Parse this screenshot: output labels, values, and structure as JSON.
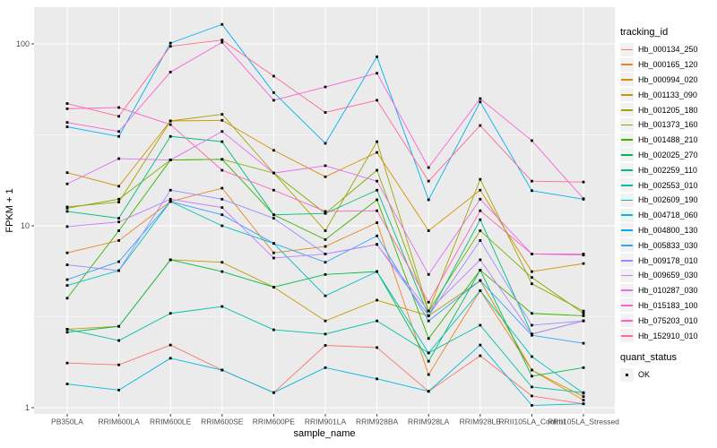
{
  "axes": {
    "x_title": "sample_name",
    "y_title": "FPKM + 1",
    "y_tick_labels": [
      "1",
      "10",
      "100"
    ]
  },
  "legend": {
    "tracking_title": "tracking_id",
    "quant_title": "quant_status",
    "quant_ok_label": "OK"
  },
  "colors": {
    "panel_bg": "#EBEBEB",
    "grid": "#FFFFFF",
    "tick_text": "#4D4D4D",
    "tick_mark": "#333333",
    "point": "#000000",
    "legend_key_bg": "#F2F2F2"
  },
  "chart_data": {
    "type": "line",
    "title": "",
    "xlabel": "sample_name",
    "ylabel": "FPKM + 1",
    "y_scale": "log10",
    "grid": true,
    "legend_position": "right",
    "ylim": [
      0.95,
      160
    ],
    "y_ticks": [
      1,
      10,
      100
    ],
    "y_minor_ticks": [
      3.1623,
      31.623
    ],
    "point_marker": {
      "shape": "square",
      "color": "#000000",
      "status_label": "OK"
    },
    "categories": [
      "PB350LA",
      "RRIM600LA",
      "RRIM600LE",
      "RRIM600SE",
      "RRIM600PE",
      "RRIM901LA",
      "RRIM928BA",
      "RRIM928LA",
      "RRIM928LB",
      "RRII105LA_Control",
      "RRII105LA_Stressed"
    ],
    "series": [
      {
        "name": "Hb_000134_250",
        "color": "#F8766D",
        "values": [
          1.76,
          1.72,
          2.21,
          1.61,
          1.21,
          2.2,
          2.14,
          1.23,
          1.93,
          1.16,
          1.05
        ]
      },
      {
        "name": "Hb_000165_120",
        "color": "#E88526",
        "values": [
          7.1,
          8.3,
          13.6,
          16.1,
          7.1,
          7.7,
          10.4,
          1.52,
          4.4,
          1.61,
          1.1
        ]
      },
      {
        "name": "Hb_000994_020",
        "color": "#D89000",
        "values": [
          19.6,
          16.5,
          37.7,
          38,
          26,
          18.6,
          25.3,
          9.4,
          15.7,
          5.6,
          6.2
        ]
      },
      {
        "name": "Hb_001133_090",
        "color": "#C09B00",
        "values": [
          2.7,
          2.8,
          6.5,
          6.3,
          4.6,
          3.0,
          3.9,
          3.2,
          5.0,
          1.61,
          1.15
        ]
      },
      {
        "name": "Hb_001205_180",
        "color": "#A3A500",
        "values": [
          12.7,
          13.5,
          37.7,
          41,
          19.5,
          9.4,
          29,
          3.4,
          18,
          4.8,
          3.4
        ]
      },
      {
        "name": "Hb_001373_160",
        "color": "#7CAE00",
        "values": [
          12.5,
          14,
          23,
          23.2,
          19.5,
          11.7,
          20.2,
          3.4,
          9.4,
          5.2,
          3.3
        ]
      },
      {
        "name": "Hb_001488_210",
        "color": "#39B600",
        "values": [
          4.0,
          9.4,
          23,
          23.2,
          11.5,
          8.4,
          13.9,
          2.4,
          5.7,
          3.3,
          3.2
        ]
      },
      {
        "name": "Hb_002025_270",
        "color": "#00BB4E",
        "values": [
          2.6,
          2.8,
          6.5,
          5.6,
          4.6,
          5.4,
          5.6,
          1.8,
          5.7,
          1.49,
          1.66
        ]
      },
      {
        "name": "Hb_002259_110",
        "color": "#00BF7D",
        "values": [
          12,
          11,
          31,
          29,
          11.5,
          11.7,
          15.7,
          3.2,
          10.8,
          2.54,
          3.0
        ]
      },
      {
        "name": "Hb_002553_010",
        "color": "#00C1A3",
        "values": [
          2.7,
          2.34,
          3.3,
          3.6,
          2.68,
          2.54,
          3.0,
          2.0,
          2.84,
          1.3,
          1.21
        ]
      },
      {
        "name": "Hb_002609_190",
        "color": "#00BFC4",
        "values": [
          4.7,
          5.67,
          13.6,
          10,
          8.0,
          4.12,
          5.6,
          2.0,
          4.4,
          1.91,
          1.2
        ]
      },
      {
        "name": "Hb_004718_060",
        "color": "#00BAE0",
        "values": [
          1.35,
          1.25,
          1.87,
          1.61,
          1.21,
          1.66,
          1.44,
          1.23,
          2.21,
          1.03,
          1.05
        ]
      },
      {
        "name": "Hb_004800_130",
        "color": "#00B0F6",
        "values": [
          35,
          31,
          101,
          128,
          54,
          28.4,
          85,
          13.9,
          48,
          15.6,
          14.0
        ]
      },
      {
        "name": "Hb_005833_030",
        "color": "#35A2FF",
        "values": [
          5.06,
          6.35,
          13.6,
          11.5,
          8.0,
          6.3,
          8.8,
          3.0,
          5.0,
          2.5,
          2.26
        ]
      },
      {
        "name": "Hb_009178_010",
        "color": "#9590FF",
        "values": [
          6.1,
          5.67,
          15.7,
          14,
          11,
          7.0,
          7.9,
          3.2,
          8.3,
          2.84,
          3.0
        ]
      },
      {
        "name": "Hb_009659_030",
        "color": "#C77CFF",
        "values": [
          9.9,
          10.5,
          14,
          12.6,
          6.65,
          7.0,
          7.9,
          3.4,
          6.5,
          2.54,
          3.0
        ]
      },
      {
        "name": "Hb_010287_030",
        "color": "#E76BF3",
        "values": [
          17,
          23.4,
          23,
          33,
          19.5,
          21.4,
          17.6,
          5.4,
          14,
          7.0,
          6.9
        ]
      },
      {
        "name": "Hb_015183_100",
        "color": "#FA62DB",
        "values": [
          37,
          33,
          70,
          102,
          49,
          58,
          69,
          20.9,
          50,
          29.4,
          14.1
        ]
      },
      {
        "name": "Hb_075203_010",
        "color": "#FF62BC",
        "values": [
          44,
          44.7,
          36,
          20.2,
          15.7,
          12,
          12.1,
          3.8,
          12.1,
          7.0,
          7.0
        ]
      },
      {
        "name": "Hb_152910_010",
        "color": "#FF6A98",
        "values": [
          47,
          40,
          97,
          105,
          66.5,
          42,
          49,
          17.6,
          35.6,
          17.6,
          17.4
        ]
      }
    ]
  }
}
